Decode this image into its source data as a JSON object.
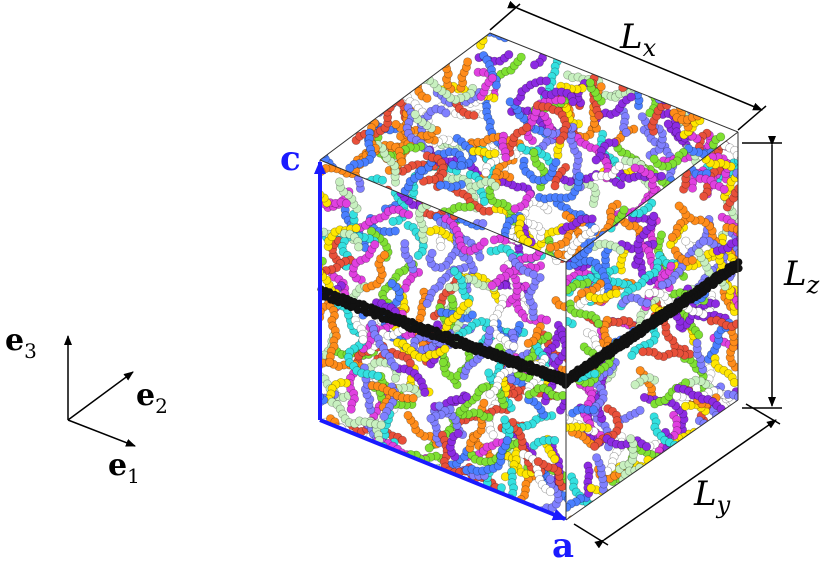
{
  "frame_axes": {
    "e1": {
      "symbol": "e",
      "sub": "1"
    },
    "e2": {
      "symbol": "e",
      "sub": "2"
    },
    "e3": {
      "symbol": "e",
      "sub": "3"
    }
  },
  "lattice_vectors": {
    "a": "a",
    "c": "c"
  },
  "box_dimensions": {
    "Lx": {
      "symbol": "L",
      "sub": "x"
    },
    "Ly": {
      "symbol": "L",
      "sub": "y"
    },
    "Lz": {
      "symbol": "L",
      "sub": "z"
    }
  },
  "colors": {
    "lattice_vector": "#1a1aff",
    "interface_layer": "#111111",
    "bead_palette": [
      "#e8503a",
      "#ffe600",
      "#33e0e0",
      "#7fe032",
      "#e040e0",
      "#8c2be2",
      "#8080ff",
      "#c8f0c0",
      "#ffffff",
      "#ff8c1a",
      "#4a7fff"
    ]
  }
}
